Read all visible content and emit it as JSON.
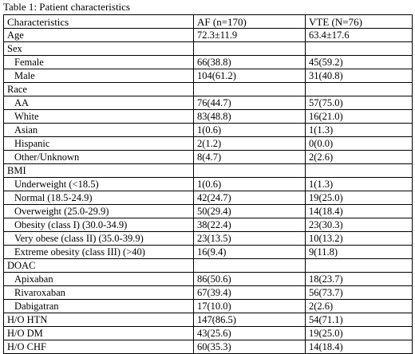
{
  "caption": "Table 1: Patient characteristics",
  "columns": [
    "Characteristics",
    "AF (n=170)",
    "VTE (N=76)"
  ],
  "rows": [
    {
      "label": "Age",
      "af": "72.3±11.9",
      "vte": "63.4±17.6",
      "indent": false
    },
    {
      "label": "Sex",
      "af": "",
      "vte": "",
      "indent": false
    },
    {
      "label": "Female",
      "af": "66(38.8)",
      "vte": "45(59.2)",
      "indent": true
    },
    {
      "label": "Male",
      "af": "104(61.2)",
      "vte": "31(40.8)",
      "indent": true
    },
    {
      "label": "Race",
      "af": "",
      "vte": "",
      "indent": false
    },
    {
      "label": "AA",
      "af": "76(44.7)",
      "vte": "57(75.0)",
      "indent": true
    },
    {
      "label": "White",
      "af": "83(48.8)",
      "vte": "16(21.0)",
      "indent": true
    },
    {
      "label": "Asian",
      "af": "1(0.6)",
      "vte": "1(1.3)",
      "indent": true
    },
    {
      "label": "Hispanic",
      "af": "2(1.2)",
      "vte": "0(0.0)",
      "indent": true
    },
    {
      "label": "Other/Unknown",
      "af": "8(4.7)",
      "vte": "2(2.6)",
      "indent": true
    },
    {
      "label": "BMI",
      "af": "",
      "vte": "",
      "indent": false
    },
    {
      "label": "Underweight (<18.5)",
      "af": "1(0.6)",
      "vte": "1(1.3)",
      "indent": true
    },
    {
      "label": "Normal (18.5-24.9)",
      "af": "42(24.7)",
      "vte": "19(25.0)",
      "indent": true
    },
    {
      "label": "Overweight (25.0-29.9)",
      "af": "50(29.4)",
      "vte": "14(18.4)",
      "indent": true
    },
    {
      "label": "Obesity (class I) (30.0-34.9)",
      "af": "38(22.4)",
      "vte": "23(30.3)",
      "indent": true
    },
    {
      "label": "Very obese (class II) (35.0-39.9)",
      "af": "23(13.5)",
      "vte": "10(13.2)",
      "indent": true
    },
    {
      "label": "Extreme obesity (class III) (>40)",
      "af": "16(9.4)",
      "vte": "9(11.8)",
      "indent": true
    },
    {
      "label": "DOAC",
      "af": "",
      "vte": "",
      "indent": false
    },
    {
      "label": "Apixaban",
      "af": "86(50.6)",
      "vte": "18(23.7)",
      "indent": true
    },
    {
      "label": "Rivaroxaban",
      "af": "67(39.4)",
      "vte": "56(73.7)",
      "indent": true
    },
    {
      "label": "Dabigatran",
      "af": "17(10.0)",
      "vte": "2(2.6)",
      "indent": true
    },
    {
      "label": "H/O HTN",
      "af": "147(86.5)",
      "vte": "54(71.1)",
      "indent": false
    },
    {
      "label": "H/O DM",
      "af": "43(25.6)",
      "vte": "19(25.0)",
      "indent": false
    },
    {
      "label": "H/O CHF",
      "af": "60(35.3)",
      "vte": "14(18.4)",
      "indent": false
    }
  ]
}
